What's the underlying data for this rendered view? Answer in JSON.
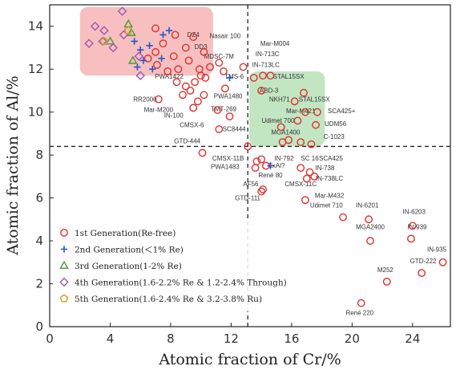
{
  "chart_data": {
    "type": "scatter",
    "title": "",
    "xlabel": "Atomic fraction of Cr/%",
    "ylabel": "Atomic fraction of Al/%",
    "xlim": [
      0,
      26.5
    ],
    "ylim": [
      0,
      15
    ],
    "xticks": [
      "0",
      "4",
      "8",
      "12",
      "16",
      "20",
      "24"
    ],
    "yticks": [
      "0",
      "2",
      "4",
      "6",
      "8",
      "10",
      "12",
      "14"
    ],
    "grid": false,
    "legend_position": "bottom-left",
    "dashed_reference_lines": {
      "x": 13.1,
      "y": 8.4
    },
    "highlight_regions": [
      {
        "label": "",
        "color": "#f08a8a",
        "x": [
          2.0,
          10.8
        ],
        "y": [
          11.7,
          14.9
        ]
      },
      {
        "label": "",
        "color": "#8fd08f",
        "x": [
          13.2,
          18.2
        ],
        "y": [
          8.4,
          11.9
        ]
      }
    ],
    "colors": {
      "gen1": "#e03030",
      "gen2": "#2456c8",
      "gen3": "#4a9a3a",
      "gen4": "#9b59b6",
      "gen5": "#c9a227"
    },
    "legend": [
      {
        "marker": "circle",
        "label": "1st Generation(Re-free)"
      },
      {
        "marker": "plus",
        "label": "2nd Generation(＜1% Re)"
      },
      {
        "marker": "triangle",
        "label": "3rd Generation(1-2% Re)"
      },
      {
        "marker": "diamond",
        "label": "4th Generation(1.6-2.2% Re & 1.2-2.4% Through)"
      },
      {
        "marker": "pentagon",
        "label": "5th Generation(1.6-2.4% Re & 3.2-3.8% Ru)"
      }
    ],
    "series": [
      {
        "name": "1st Generation(Re-free)",
        "marker": "circle",
        "points": [
          {
            "x": 7.0,
            "y": 13.9
          },
          {
            "x": 7.5,
            "y": 13.2
          },
          {
            "x": 8.3,
            "y": 13.6
          },
          {
            "x": 9.0,
            "y": 13.0
          },
          {
            "x": 9.5,
            "y": 13.5
          },
          {
            "x": 10.2,
            "y": 12.8
          },
          {
            "x": 6.5,
            "y": 12.5
          },
          {
            "x": 7.1,
            "y": 12.2
          },
          {
            "x": 7.8,
            "y": 11.9
          },
          {
            "x": 8.5,
            "y": 12.0
          },
          {
            "x": 9.2,
            "y": 12.4
          },
          {
            "x": 9.9,
            "y": 12.0
          },
          {
            "x": 10.6,
            "y": 12.1
          },
          {
            "x": 11.2,
            "y": 12.3
          },
          {
            "x": 10.3,
            "y": 11.6
          },
          {
            "x": 11.5,
            "y": 11.9
          },
          {
            "x": 7.0,
            "y": 12.8
          },
          {
            "x": 8.2,
            "y": 12.6
          },
          {
            "x": 9.6,
            "y": 11.4
          },
          {
            "x": 10.0,
            "y": 11.7
          },
          {
            "x": 9.0,
            "y": 11.2
          },
          {
            "x": 7.2,
            "y": 10.6
          },
          {
            "x": 8.8,
            "y": 10.8
          },
          {
            "x": 9.3,
            "y": 11.0
          },
          {
            "x": 9.8,
            "y": 10.5
          },
          {
            "x": 10.2,
            "y": 10.8
          },
          {
            "x": 9.5,
            "y": 10.2
          },
          {
            "x": 11.1,
            "y": 10.1
          },
          {
            "x": 11.6,
            "y": 11.1
          },
          {
            "x": 11.2,
            "y": 9.2
          },
          {
            "x": 11.9,
            "y": 9.8
          },
          {
            "x": 10.1,
            "y": 8.1
          },
          {
            "x": 8.4,
            "y": 11.4
          },
          {
            "x": 12.8,
            "y": 12.1
          },
          {
            "x": 13.5,
            "y": 11.6
          },
          {
            "x": 14.1,
            "y": 11.7
          },
          {
            "x": 14.6,
            "y": 11.7
          },
          {
            "x": 14.0,
            "y": 11.0
          },
          {
            "x": 16.2,
            "y": 10.5
          },
          {
            "x": 16.8,
            "y": 10.9
          },
          {
            "x": 16.9,
            "y": 10.0
          },
          {
            "x": 17.7,
            "y": 10.0
          },
          {
            "x": 17.6,
            "y": 9.4
          },
          {
            "x": 16.4,
            "y": 9.6
          },
          {
            "x": 15.3,
            "y": 9.3
          },
          {
            "x": 15.4,
            "y": 8.6
          },
          {
            "x": 15.8,
            "y": 8.7
          },
          {
            "x": 16.6,
            "y": 8.6
          },
          {
            "x": 17.3,
            "y": 8.5
          },
          {
            "x": 13.1,
            "y": 8.4
          },
          {
            "x": 13.7,
            "y": 7.7
          },
          {
            "x": 14.0,
            "y": 7.8
          },
          {
            "x": 13.6,
            "y": 7.4
          },
          {
            "x": 14.3,
            "y": 7.5
          },
          {
            "x": 16.6,
            "y": 7.4
          },
          {
            "x": 17.2,
            "y": 7.2
          },
          {
            "x": 17.0,
            "y": 6.9
          },
          {
            "x": 17.5,
            "y": 7.0
          },
          {
            "x": 14.1,
            "y": 6.4
          },
          {
            "x": 14.0,
            "y": 6.3
          },
          {
            "x": 16.9,
            "y": 5.9
          },
          {
            "x": 19.4,
            "y": 5.1
          },
          {
            "x": 21.1,
            "y": 5.0
          },
          {
            "x": 24.0,
            "y": 4.7
          },
          {
            "x": 23.9,
            "y": 4.1
          },
          {
            "x": 21.2,
            "y": 4.0
          },
          {
            "x": 26.0,
            "y": 3.0
          },
          {
            "x": 24.6,
            "y": 2.5
          },
          {
            "x": 22.3,
            "y": 2.1
          },
          {
            "x": 20.6,
            "y": 1.1
          }
        ]
      },
      {
        "name": "2nd Generation(＜1% Re)",
        "marker": "plus",
        "points": [
          {
            "x": 5.6,
            "y": 13.3
          },
          {
            "x": 6.0,
            "y": 12.9
          },
          {
            "x": 6.6,
            "y": 13.1
          },
          {
            "x": 7.5,
            "y": 13.6
          },
          {
            "x": 7.9,
            "y": 13.8
          },
          {
            "x": 6.2,
            "y": 12.4
          },
          {
            "x": 6.8,
            "y": 12.0
          },
          {
            "x": 7.4,
            "y": 12.5
          },
          {
            "x": 5.8,
            "y": 12.1
          },
          {
            "x": 11.9,
            "y": 11.6
          },
          {
            "x": 14.6,
            "y": 7.5
          }
        ]
      },
      {
        "name": "3rd Generation(1-2% Re)",
        "marker": "triangle",
        "points": [
          {
            "x": 5.2,
            "y": 14.1
          },
          {
            "x": 5.4,
            "y": 13.7
          },
          {
            "x": 4.0,
            "y": 13.3
          },
          {
            "x": 5.5,
            "y": 12.4
          }
        ]
      },
      {
        "name": "4th Generation(1.6-2.2% Re & 1.2-2.4% Through)",
        "marker": "diamond",
        "points": [
          {
            "x": 4.8,
            "y": 14.7
          },
          {
            "x": 3.0,
            "y": 14.0
          },
          {
            "x": 3.6,
            "y": 13.8
          },
          {
            "x": 2.6,
            "y": 13.2
          },
          {
            "x": 3.5,
            "y": 13.3
          },
          {
            "x": 4.2,
            "y": 13.0
          },
          {
            "x": 4.9,
            "y": 13.6
          },
          {
            "x": 6.0,
            "y": 11.7
          },
          {
            "x": 5.9,
            "y": 12.6
          }
        ]
      },
      {
        "name": "5th Generation(1.6-2.4% Re & 3.2-3.8% Ru)",
        "marker": "pentagon",
        "points": [
          {
            "x": 3.6,
            "y": 13.3
          },
          {
            "x": 5.2,
            "y": 13.8
          }
        ]
      }
    ],
    "annotations": [
      {
        "text": "DZ4",
        "x": 9.5,
        "y": 13.5
      },
      {
        "text": "Nasair 100",
        "x": 11.6,
        "y": 13.45
      },
      {
        "text": "DD3",
        "x": 10.0,
        "y": 12.95
      },
      {
        "text": "Mar-M004",
        "x": 14.9,
        "y": 13.1
      },
      {
        "text": "IN-713C",
        "x": 14.4,
        "y": 12.6
      },
      {
        "text": "MDSC-7M",
        "x": 11.2,
        "y": 12.5
      },
      {
        "text": "IN-713LC",
        "x": 14.3,
        "y": 12.1
      },
      {
        "text": "PWA1422",
        "x": 7.9,
        "y": 11.55
      },
      {
        "text": "TMS-6",
        "x": 12.2,
        "y": 11.55
      },
      {
        "text": "STAL15SX",
        "x": 15.8,
        "y": 11.55
      },
      {
        "text": "ABD-3",
        "x": 14.5,
        "y": 10.9
      },
      {
        "text": "PWA1480",
        "x": 11.8,
        "y": 10.65
      },
      {
        "text": "RR2000",
        "x": 6.3,
        "y": 10.5
      },
      {
        "text": "NKH71",
        "x": 15.2,
        "y": 10.5
      },
      {
        "text": "STAL15SX",
        "x": 17.5,
        "y": 10.5
      },
      {
        "text": "Mar-M200",
        "x": 7.2,
        "y": 10.0
      },
      {
        "text": "IN-100",
        "x": 8.2,
        "y": 9.75
      },
      {
        "text": "Mar-M421",
        "x": 16.6,
        "y": 9.95
      },
      {
        "text": "SCA425+",
        "x": 19.3,
        "y": 9.95
      },
      {
        "text": "TMT-269",
        "x": 11.5,
        "y": 10.05
      },
      {
        "text": "Udimet 700",
        "x": 15.1,
        "y": 9.5
      },
      {
        "text": "UDM56",
        "x": 18.9,
        "y": 9.35
      },
      {
        "text": "CMSX-6",
        "x": 9.4,
        "y": 9.3
      },
      {
        "text": "SC8444",
        "x": 12.2,
        "y": 9.1
      },
      {
        "text": "MGA1400",
        "x": 15.6,
        "y": 8.95
      },
      {
        "text": "C-1023",
        "x": 18.8,
        "y": 8.75
      },
      {
        "text": "GTD-444",
        "x": 9.1,
        "y": 8.55
      },
      {
        "text": "CMSX-11B",
        "x": 11.8,
        "y": 7.75
      },
      {
        "text": "IN-792",
        "x": 15.5,
        "y": 7.75
      },
      {
        "text": "SC 16",
        "x": 17.2,
        "y": 7.75
      },
      {
        "text": "SCA425",
        "x": 18.6,
        "y": 7.75
      },
      {
        "text": "ExAl?",
        "x": 15.0,
        "y": 7.4
      },
      {
        "text": "PWA1483",
        "x": 11.6,
        "y": 7.35
      },
      {
        "text": "IN-738",
        "x": 18.2,
        "y": 7.3
      },
      {
        "text": "René 80",
        "x": 14.6,
        "y": 6.95
      },
      {
        "text": "IN-738LC",
        "x": 18.5,
        "y": 6.8
      },
      {
        "text": "AF56",
        "x": 13.3,
        "y": 6.55
      },
      {
        "text": "CMSX-11C",
        "x": 16.6,
        "y": 6.55
      },
      {
        "text": "Mar-M432",
        "x": 18.5,
        "y": 6.0
      },
      {
        "text": "GTD-111",
        "x": 13.1,
        "y": 5.9
      },
      {
        "text": "Udimet 710",
        "x": 18.3,
        "y": 5.55
      },
      {
        "text": "IN-6201",
        "x": 21.0,
        "y": 5.55
      },
      {
        "text": "IN-6203",
        "x": 24.1,
        "y": 5.25
      },
      {
        "text": "IN-939",
        "x": 24.3,
        "y": 4.55
      },
      {
        "text": "MGA2400",
        "x": 21.2,
        "y": 4.55
      },
      {
        "text": "IN-935",
        "x": 25.6,
        "y": 3.5
      },
      {
        "text": "GTD-222",
        "x": 24.7,
        "y": 2.95
      },
      {
        "text": "M252",
        "x": 22.2,
        "y": 2.55
      },
      {
        "text": "René 220",
        "x": 20.5,
        "y": 0.55
      }
    ]
  }
}
